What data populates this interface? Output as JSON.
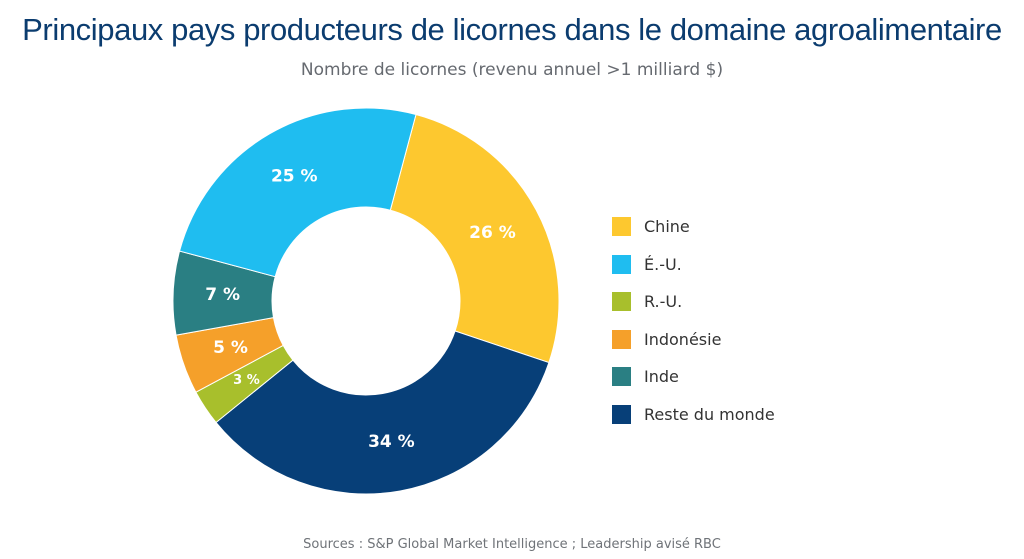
{
  "title": "Principaux pays producteurs de licornes dans le domaine agroalimentaire",
  "subtitle": "Nombre de licornes (revenu annuel >1 milliard $)",
  "source": "Sources : S&P Global Market Intelligence ; Leadership avisé RBC",
  "chart_data": {
    "type": "pie",
    "variant": "donut",
    "title": "Principaux pays producteurs de licornes dans le domaine agroalimentaire",
    "subtitle": "Nombre de licornes (revenu annuel >1 milliard $)",
    "unit": "%",
    "legend_position": "right",
    "slices": [
      {
        "label": "Chine",
        "value": 26,
        "display": "26 %",
        "color": "#fdc82f"
      },
      {
        "label": "É.-U.",
        "value": 25,
        "display": "25 %",
        "color": "#1fbdf0"
      },
      {
        "label": "R.-U.",
        "value": 3,
        "display": "3 %",
        "color": "#a8bf2c"
      },
      {
        "label": "Indonésie",
        "value": 5,
        "display": "5 %",
        "color": "#f5a02a"
      },
      {
        "label": "Inde",
        "value": 7,
        "display": "7 %",
        "color": "#2a7f83"
      },
      {
        "label": "Reste du monde",
        "value": 34,
        "display": "34 %",
        "color": "#073f78"
      }
    ],
    "draw_order": [
      "Chine",
      "Reste du monde",
      "R.-U.",
      "Indonésie",
      "Inde",
      "É.-U."
    ]
  }
}
